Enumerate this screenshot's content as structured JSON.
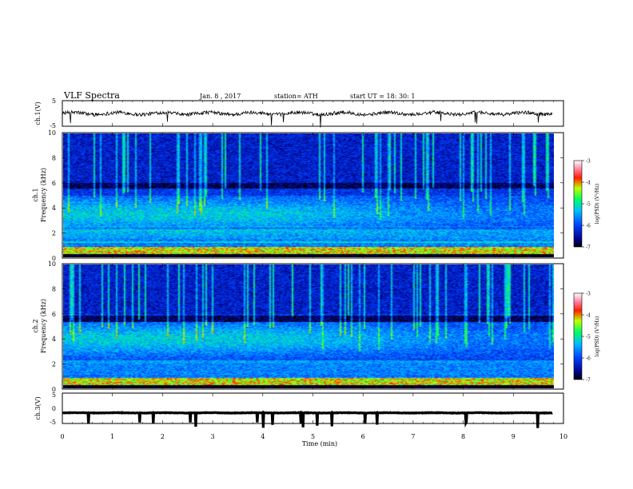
{
  "header": {
    "title": "VLF  Spectra",
    "date": "Jan.  8  , 2017",
    "station": "station= ATH",
    "start_ut": "start  UT  =    18:  30:  1"
  },
  "chart_data": [
    {
      "type": "line",
      "name": "ch1-waveform",
      "ylabel": "ch.1(V)",
      "ylim": [
        -5,
        5
      ],
      "yticks": [
        "5",
        "-5"
      ],
      "xlim": [
        0,
        10
      ],
      "baseline_v": 0,
      "color": "#000000"
    },
    {
      "type": "heatmap",
      "name": "ch1-spectrogram",
      "ylabel": "ch.1\nFrequency  (kHz)",
      "ylabel_lines": [
        "ch.1",
        "Frequency  (kHz)"
      ],
      "ylim": [
        0,
        10
      ],
      "yticks": [
        "0",
        "2",
        "4",
        "6",
        "8",
        "10"
      ],
      "xlim": [
        0,
        9.8
      ],
      "colorbar": {
        "label": "log(PSD) (V²/Hz)",
        "range": [
          -7,
          -3
        ],
        "ticks": [
          "-3",
          "-4",
          "-5",
          "-6",
          "-7"
        ]
      },
      "features": {
        "dark_band_khz": [
          5.6,
          6.0
        ],
        "bright_band_khz": [
          2.5,
          4.5
        ],
        "bright_fade_after_min": 4
      }
    },
    {
      "type": "heatmap",
      "name": "ch2-spectrogram",
      "ylabel": "ch.2\nFrequency  (kHz)",
      "ylabel_lines": [
        "ch.2",
        "Frequency  (kHz)"
      ],
      "ylim": [
        0,
        10
      ],
      "yticks": [
        "0",
        "2",
        "4",
        "6",
        "8",
        "10"
      ],
      "xlim": [
        0,
        9.8
      ],
      "colorbar": {
        "label": "log(PSD) (V²/Hz)",
        "range": [
          -7,
          -3
        ],
        "ticks": [
          "-3",
          "-4",
          "-5",
          "-6",
          "-7"
        ]
      },
      "features": {
        "dark_band_khz": [
          5.4,
          5.9
        ],
        "bright_band_khz": [
          3.0,
          5.0
        ],
        "bright_fade_after_min": 4
      }
    },
    {
      "type": "line",
      "name": "ch3-waveform",
      "ylabel": "ch.3(V)",
      "ylim": [
        -5,
        5
      ],
      "yticks": [
        "5",
        "0",
        "-5"
      ],
      "xlim": [
        0,
        10
      ],
      "baseline_v": -1.5,
      "color": "#000000"
    }
  ],
  "xaxis": {
    "label": "Time  (min)",
    "ticks": [
      "0",
      "1",
      "2",
      "3",
      "4",
      "5",
      "6",
      "7",
      "8",
      "9",
      "10"
    ],
    "range": [
      0,
      10
    ]
  }
}
